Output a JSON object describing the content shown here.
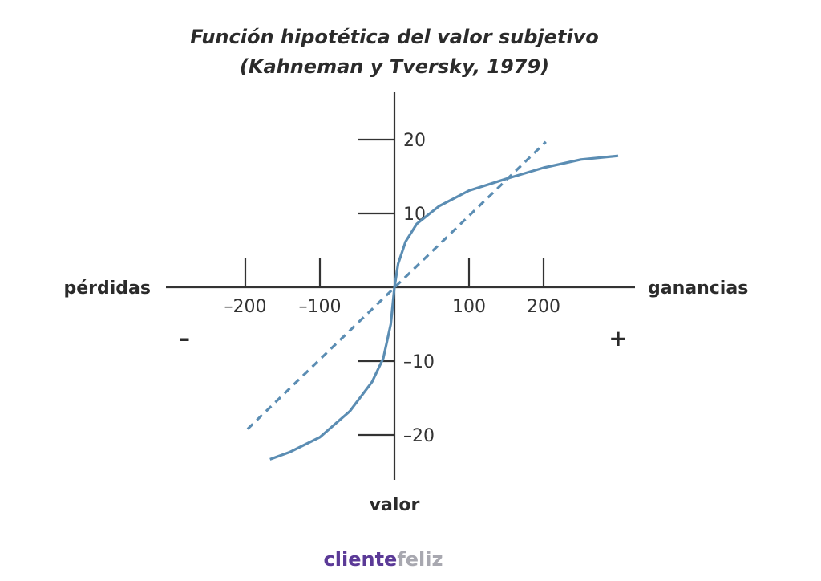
{
  "chart_data": {
    "type": "line",
    "title": "Función hipotética del valor subjetivo",
    "subtitle": "(Kahneman y Tversky, 1979)",
    "xlabel_left": "pérdidas",
    "xlabel_right": "ganancias",
    "ylabel": "valor",
    "sign_negative": "–",
    "sign_positive": "+",
    "xlim": [
      -310,
      325
    ],
    "ylim": [
      -28,
      26
    ],
    "x_ticks": [
      {
        "value": -200,
        "label": "–200"
      },
      {
        "value": -100,
        "label": "–100"
      },
      {
        "value": 100,
        "label": "100"
      },
      {
        "value": 200,
        "label": "200"
      }
    ],
    "y_ticks": [
      {
        "value": 20,
        "label": "20"
      },
      {
        "value": 10,
        "label": "10"
      },
      {
        "value": -10,
        "label": "–10"
      },
      {
        "value": -20,
        "label": "–20"
      }
    ],
    "series": [
      {
        "style": "solid",
        "color": "#5b8db3",
        "x": [
          -167,
          -140,
          -100,
          -60,
          -30,
          -15,
          -5,
          0,
          5,
          15,
          30,
          60,
          100,
          150,
          200,
          250,
          300
        ],
        "y": [
          -23.3,
          -22.3,
          -20.3,
          -16.8,
          -12.8,
          -9.6,
          -5.0,
          0,
          3.2,
          6.2,
          8.6,
          11.0,
          13.1,
          14.7,
          16.2,
          17.3,
          17.8
        ]
      },
      {
        "style": "dashed",
        "color": "#5b8db3",
        "x": [
          -197,
          203
        ],
        "y": [
          -19.2,
          19.7
        ]
      }
    ]
  },
  "branding": {
    "logo_part1": "cliente",
    "logo_part2": "feliz"
  }
}
